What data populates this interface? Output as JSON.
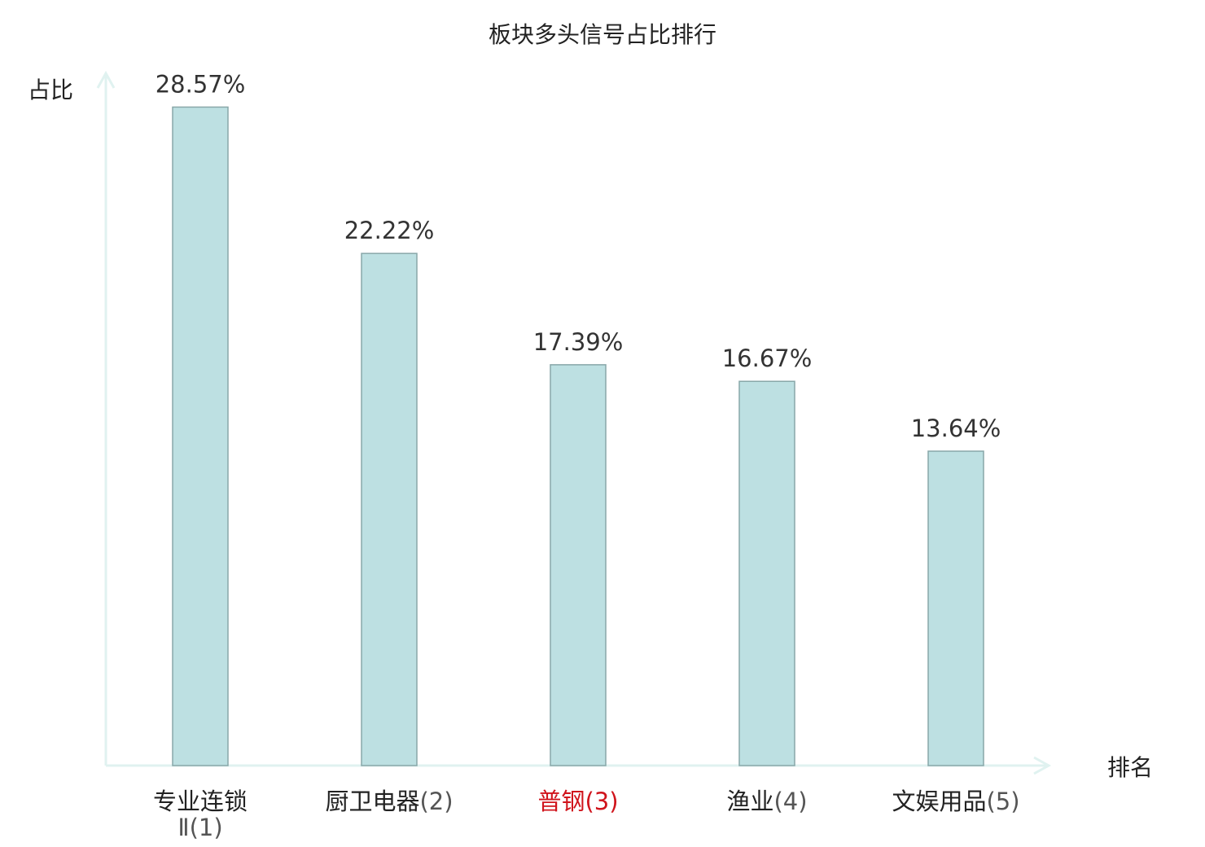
{
  "chart_data": {
    "type": "bar",
    "title": "板块多头信号占比排行",
    "ylabel": "占比",
    "xlabel": "排名",
    "ylim": [
      0,
      30
    ],
    "categories": [
      {
        "name_line1": "专业连锁",
        "name_line2": "Ⅱ",
        "rank": "(1)",
        "highlight": false
      },
      {
        "name_line1": "厨卫电器",
        "name_line2": "",
        "rank": "(2)",
        "highlight": false
      },
      {
        "name_line1": "普钢",
        "name_line2": "",
        "rank": "(3)",
        "highlight": true
      },
      {
        "name_line1": "渔业",
        "name_line2": "",
        "rank": "(4)",
        "highlight": false
      },
      {
        "name_line1": "文娱用品",
        "name_line2": "",
        "rank": "(5)",
        "highlight": false
      }
    ],
    "values": [
      28.57,
      22.22,
      17.39,
      16.67,
      13.64
    ],
    "value_labels": [
      "28.57%",
      "22.22%",
      "17.39%",
      "16.67%",
      "13.64%"
    ],
    "colors": {
      "bar_fill": "#bde0e2",
      "bar_stroke": "#88a7a9",
      "axis": "#e0f2f0",
      "highlight": "#d0141c"
    },
    "grid": false,
    "legend": "none"
  }
}
